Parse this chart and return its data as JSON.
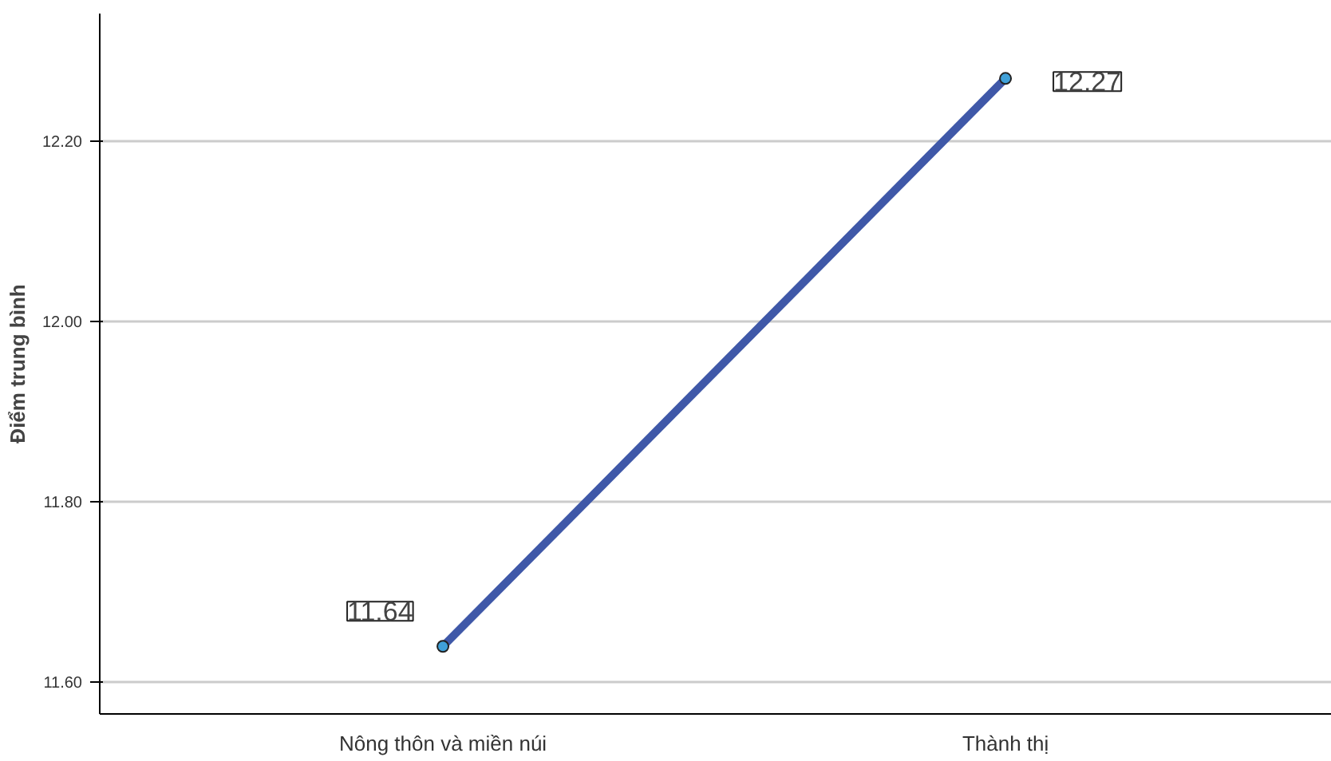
{
  "chart_data": {
    "type": "line",
    "ylabel": "Điểm trung bình",
    "categories": [
      "Nông thôn và miền núi",
      "Thành thị"
    ],
    "series": [
      {
        "color": "#3f58a8",
        "values": [
          11.64,
          12.27
        ]
      }
    ],
    "ylim": [
      11.565,
      12.342
    ],
    "yticks": [
      {
        "value": 11.6,
        "label": "11.60"
      },
      {
        "value": 11.8,
        "label": "11.80"
      },
      {
        "value": 12.0,
        "label": "12.00"
      },
      {
        "value": 12.2,
        "label": "12.20"
      }
    ],
    "grid": "y",
    "marker": "circle",
    "data_labels": true
  }
}
